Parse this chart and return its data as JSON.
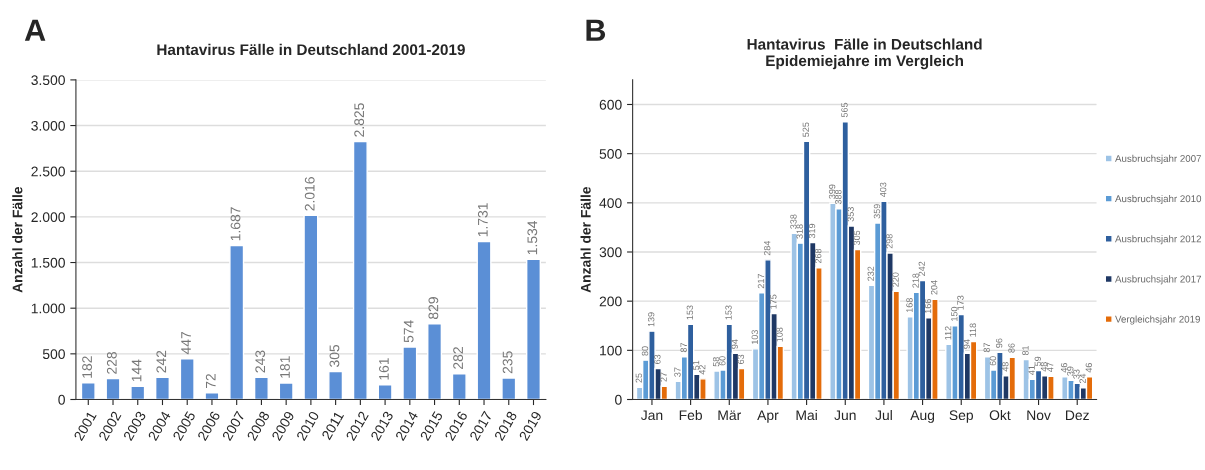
{
  "chart_data": [
    {
      "type": "bar",
      "title": "Hantavirus Fälle in Deutschland 2001-2019",
      "ylabel": "Anzahl der Fälle",
      "annotations": [
        "A"
      ],
      "categories": [
        "2001",
        "2002",
        "2003",
        "2004",
        "2005",
        "2006",
        "2007",
        "2008",
        "2009",
        "2010",
        "2011",
        "2012",
        "2013",
        "2014",
        "2015",
        "2016",
        "2017",
        "2018",
        "2019"
      ],
      "values": [
        182,
        228,
        144,
        242,
        447,
        72,
        1687,
        243,
        181,
        2016,
        305,
        2825,
        161,
        574,
        829,
        282,
        1731,
        235,
        1534
      ],
      "value_labels": [
        "182",
        "228",
        "144",
        "242",
        "447",
        "72",
        "1.687",
        "243",
        "181",
        "2.016",
        "305",
        "2.825",
        "161",
        "574",
        "829",
        "282",
        "1.731",
        "235",
        "1.534"
      ],
      "color": "#5b8fd6",
      "ylim": [
        0,
        3500
      ],
      "yticks": [
        0,
        500,
        {
          "value": 1000,
          "label": "1.000"
        },
        {
          "value": 1500,
          "label": "1.500"
        },
        {
          "value": 2000,
          "label": "2.000"
        },
        {
          "value": 2500,
          "label": "2.500"
        },
        {
          "value": 3000,
          "label": "3.000"
        },
        {
          "value": 3500,
          "label": "3.500"
        }
      ],
      "grid": "y",
      "legend": false
    },
    {
      "type": "bar",
      "title": "Hantavirus  Fälle in Deutschland\nEpidemiejahre im Vergleich",
      "ylabel": "Anzahl der Fälle",
      "annotations": [
        "B"
      ],
      "categories": [
        "Jan",
        "Feb",
        "Mär",
        "Apr",
        "Mai",
        "Jun",
        "Jul",
        "Aug",
        "Sep",
        "Okt",
        "Nov",
        "Dez"
      ],
      "series": [
        {
          "name": "Ausbruchsjahr 2007",
          "color": "#9dc3e6",
          "values": [
            25,
            37,
            58,
            103,
            338,
            399,
            232,
            168,
            112,
            87,
            81,
            46
          ]
        },
        {
          "name": "Ausbruchsjahr 2010",
          "color": "#5b9bd5",
          "values": [
            80,
            87,
            60,
            217,
            318,
            388,
            359,
            218,
            150,
            60,
            41,
            39
          ]
        },
        {
          "name": "Ausbruchsjahr 2012",
          "color": "#2e5f9e",
          "values": [
            139,
            153,
            153,
            284,
            525,
            565,
            403,
            242,
            173,
            96,
            59,
            33
          ]
        },
        {
          "name": "Ausbruchsjahr 2017",
          "color": "#1f3864",
          "values": [
            63,
            51,
            94,
            175,
            319,
            353,
            298,
            166,
            94,
            48,
            48,
            24
          ]
        },
        {
          "name": "Vergleichsjahr 2019",
          "color": "#e46c0a",
          "values": [
            27,
            42,
            63,
            108,
            268,
            305,
            220,
            204,
            118,
            86,
            47,
            46
          ]
        }
      ],
      "ylim": [
        0,
        650
      ],
      "yticks": [
        0,
        100,
        200,
        300,
        400,
        500,
        600
      ],
      "grid": "y",
      "data_labels": true,
      "legend": "right"
    }
  ]
}
